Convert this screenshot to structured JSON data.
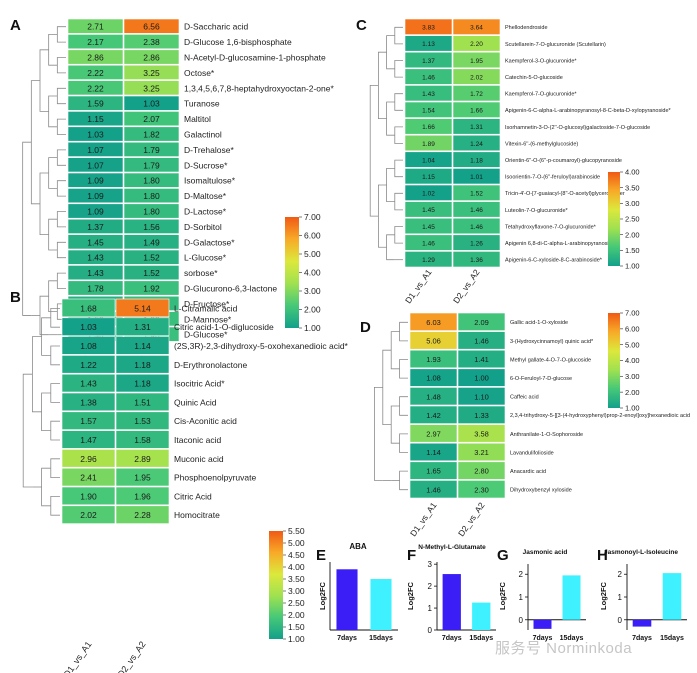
{
  "watermark": "服务号 Norminkoda",
  "chart_data": [
    {
      "panel": "A",
      "type": "heatmap",
      "columns": [
        "D1_vs_A1",
        "D2_vs_A2"
      ],
      "colorbar": {
        "min": 1.0,
        "max": 7.0,
        "ticks": [
          "1.00",
          "2.00",
          "3.00",
          "4.00",
          "5.00",
          "6.00",
          "7.00"
        ]
      },
      "rows": [
        {
          "label": "D-Saccharic acid",
          "values": [
            "2.71",
            "6.56"
          ]
        },
        {
          "label": "D-Glucose 1,6-bisphosphate",
          "values": [
            "2.17",
            "2.38"
          ]
        },
        {
          "label": "N-Acetyl-D-glucosamine-1-phosphate",
          "values": [
            "2.86",
            "2.86"
          ]
        },
        {
          "label": "Octose*",
          "values": [
            "2.22",
            "3.25"
          ]
        },
        {
          "label": "1,3,4,5,6,7,8-heptahydroxyoctan-2-one*",
          "values": [
            "2.22",
            "3.25"
          ]
        },
        {
          "label": "Turanose",
          "values": [
            "1.59",
            "1.03"
          ]
        },
        {
          "label": "Maltitol",
          "values": [
            "1.15",
            "2.07"
          ]
        },
        {
          "label": "Galactinol",
          "values": [
            "1.03",
            "1.82"
          ]
        },
        {
          "label": "D-Trehalose*",
          "values": [
            "1.07",
            "1.79"
          ]
        },
        {
          "label": "D-Sucrose*",
          "values": [
            "1.07",
            "1.79"
          ]
        },
        {
          "label": "Isomaltulose*",
          "values": [
            "1.09",
            "1.80"
          ]
        },
        {
          "label": "D-Maltose*",
          "values": [
            "1.09",
            "1.80"
          ]
        },
        {
          "label": "D-Lactose*",
          "values": [
            "1.09",
            "1.80"
          ]
        },
        {
          "label": "D-Sorbitol",
          "values": [
            "1.37",
            "1.56"
          ]
        },
        {
          "label": "D-Galactose*",
          "values": [
            "1.45",
            "1.49"
          ]
        },
        {
          "label": "L-Glucose*",
          "values": [
            "1.43",
            "1.52"
          ]
        },
        {
          "label": "sorbose*",
          "values": [
            "1.43",
            "1.52"
          ]
        },
        {
          "label": "D-Glucurono-6,3-lactone",
          "values": [
            "1.78",
            "1.92"
          ]
        },
        {
          "label": "D-Fructose*",
          "values": [
            "1.45",
            "1.82"
          ]
        },
        {
          "label": "D-Mannose*",
          "values": [
            "1.50",
            "1.93"
          ]
        },
        {
          "label": "D-Glucose*",
          "values": [
            "1.50",
            "1.93"
          ]
        }
      ]
    },
    {
      "panel": "B",
      "type": "heatmap",
      "columns": [
        "D1_vs_A1",
        "D2_vs_A2"
      ],
      "colorbar": {
        "min": 1.0,
        "max": 5.5,
        "ticks": [
          "1.00",
          "1.50",
          "2.00",
          "2.50",
          "3.00",
          "3.50",
          "4.00",
          "4.50",
          "5.00",
          "5.50"
        ]
      },
      "rows": [
        {
          "label": "L-Citramalic acid",
          "values": [
            "1.68",
            "5.14"
          ]
        },
        {
          "label": "Citric acid-1-O-diglucoside",
          "values": [
            "1.03",
            "1.31"
          ]
        },
        {
          "label": "(2S,3R)-2,3-dihydroxy-5-oxohexanedioic acid*",
          "values": [
            "1.08",
            "1.14"
          ]
        },
        {
          "label": "D-Erythronolactone",
          "values": [
            "1.22",
            "1.18"
          ]
        },
        {
          "label": "Isocitric Acid*",
          "values": [
            "1.43",
            "1.18"
          ]
        },
        {
          "label": "Quinic Acid",
          "values": [
            "1.38",
            "1.51"
          ]
        },
        {
          "label": "Cis-Aconitic acid",
          "values": [
            "1.57",
            "1.53"
          ]
        },
        {
          "label": "Itaconic acid",
          "values": [
            "1.47",
            "1.58"
          ]
        },
        {
          "label": "Muconic acid",
          "values": [
            "2.96",
            "2.89"
          ]
        },
        {
          "label": "Phosphoenolpyruvate",
          "values": [
            "2.41",
            "1.95"
          ]
        },
        {
          "label": "Citric Acid",
          "values": [
            "1.90",
            "1.96"
          ]
        },
        {
          "label": "Homocitrate",
          "values": [
            "2.02",
            "2.28"
          ]
        }
      ]
    },
    {
      "panel": "C",
      "type": "heatmap",
      "columns": [
        "D1_vs_A1",
        "D2_vs_A2"
      ],
      "colorbar": {
        "min": 1.0,
        "max": 4.0,
        "ticks": [
          "1.00",
          "1.50",
          "2.00",
          "2.50",
          "3.00",
          "3.50",
          "4.00"
        ]
      },
      "rows": [
        {
          "label": "Phellodendroside",
          "values": [
            "3.83",
            "3.64"
          ]
        },
        {
          "label": "Scutellarein-7-O-glucuronide (Scutellarin)",
          "values": [
            "1.13",
            "2.20"
          ]
        },
        {
          "label": "Kaempferol-3-O-glucuronide*",
          "values": [
            "1.37",
            "1.95"
          ]
        },
        {
          "label": "Catechin-5-O-glucoside",
          "values": [
            "1.46",
            "2.02"
          ]
        },
        {
          "label": "Kaempferol-7-O-glucuronide*",
          "values": [
            "1.43",
            "1.72"
          ]
        },
        {
          "label": "Apigenin-6-C-alpha-L-arabinopyranosyl-8-C-beta-D-xylopyranoside*",
          "values": [
            "1.54",
            "1.66"
          ]
        },
        {
          "label": "Isorhamnetin-3-O-(2''-O-glucosyl)galactoside-7-O-glucoside",
          "values": [
            "1.66",
            "1.31"
          ]
        },
        {
          "label": "Vitexin-6''-(6-methylglucoside)",
          "values": [
            "1.89",
            "1.24"
          ]
        },
        {
          "label": "Orientin-6''-O-(6''-p-coumaroyl)-glucopyranoside",
          "values": [
            "1.04",
            "1.18"
          ]
        },
        {
          "label": "Isoorientin-7-O-(6''-feruloyl)arabinoside",
          "values": [
            "1.15",
            "1.01"
          ]
        },
        {
          "label": "Tricin-4'-O-[7-guaiacyl-(8''-O-acetyl)glycerol]ether",
          "values": [
            "1.02",
            "1.52"
          ]
        },
        {
          "label": "Luteolin-7-O-glucuronide*",
          "values": [
            "1.45",
            "1.46"
          ]
        },
        {
          "label": "Tetahydroxyflavone-7-O-glucuronide*",
          "values": [
            "1.45",
            "1.46"
          ]
        },
        {
          "label": "Apigenin 6,8-di-C-alpha-L-arabinopyranoside",
          "values": [
            "1.46",
            "1.26"
          ]
        },
        {
          "label": "Apigenin-6-C-xyloside-8-C-arabinoside*",
          "values": [
            "1.29",
            "1.36"
          ]
        }
      ]
    },
    {
      "panel": "D",
      "type": "heatmap",
      "columns": [
        "D1_vs_A1",
        "D2_vs_A2"
      ],
      "colorbar": {
        "min": 1.0,
        "max": 7.0,
        "ticks": [
          "1.00",
          "2.00",
          "3.00",
          "4.00",
          "5.00",
          "6.00",
          "7.00"
        ]
      },
      "rows": [
        {
          "label": "Gallic acid-1-O-xyloside",
          "values": [
            "6.03",
            "2.09"
          ]
        },
        {
          "label": "3-(Hydroxycinnamoyl) quinic acid*",
          "values": [
            "5.06",
            "1.46"
          ]
        },
        {
          "label": "Methyl gallate-4-O-7-O-glucoside",
          "values": [
            "1.93",
            "1.41"
          ]
        },
        {
          "label": "6-O-Feruloyl-7-D-glucose",
          "values": [
            "1.08",
            "1.00"
          ]
        },
        {
          "label": "Caffeic acid",
          "values": [
            "1.48",
            "1.10"
          ]
        },
        {
          "label": "2,3,4-trihydroxy-5-[[3-(4-hydroxyphenyl)prop-2-enoyl]oxy]hexanedioic acid",
          "values": [
            "1.42",
            "1.33"
          ]
        },
        {
          "label": "Anthranilate-1-O-Sophoroside",
          "values": [
            "2.97",
            "3.58"
          ]
        },
        {
          "label": "Lavandulifolioside",
          "values": [
            "1.14",
            "3.21"
          ]
        },
        {
          "label": "Anacardic acid",
          "values": [
            "1.65",
            "2.80"
          ]
        },
        {
          "label": "Dihydroxybenzyl xyloside",
          "values": [
            "1.46",
            "2.30"
          ]
        }
      ]
    },
    {
      "panel": "E",
      "type": "bar",
      "title": "ABA",
      "ylabel": "Log2FC",
      "categories": [
        "7days",
        "15days"
      ],
      "values": [
        3.75,
        3.15
      ],
      "ylim": [
        0,
        4.2
      ],
      "yticks": [],
      "bar_colors": [
        "#3b1ef5",
        "#3ff0ff"
      ]
    },
    {
      "panel": "F",
      "type": "bar",
      "title": "N-Methyl-L-Glutamate",
      "ylabel": "Log2FC",
      "categories": [
        "7days",
        "15days"
      ],
      "values": [
        2.55,
        1.25
      ],
      "ylim": [
        0,
        3.1
      ],
      "yticks": [
        "0",
        "1",
        "2",
        "3"
      ],
      "bar_colors": [
        "#3b1ef5",
        "#3ff0ff"
      ]
    },
    {
      "panel": "G",
      "type": "bar",
      "title": "Jasmonic acid",
      "ylabel": "Log2FC",
      "categories": [
        "7days",
        "15days"
      ],
      "values": [
        -0.4,
        1.95
      ],
      "ylim": [
        -0.45,
        2.45
      ],
      "yticks": [
        "0",
        "1",
        "2"
      ],
      "bar_colors": [
        "#3b1ef5",
        "#3ff0ff"
      ]
    },
    {
      "panel": "H",
      "type": "bar",
      "title": "Jasmonoyl-L-Isoleucine",
      "ylabel": "Log2FC",
      "categories": [
        "7days",
        "15days"
      ],
      "values": [
        -0.3,
        2.05
      ],
      "ylim": [
        -0.45,
        2.45
      ],
      "yticks": [
        "0",
        "1",
        "2"
      ],
      "bar_colors": [
        "#3b1ef5",
        "#3ff0ff"
      ]
    }
  ]
}
